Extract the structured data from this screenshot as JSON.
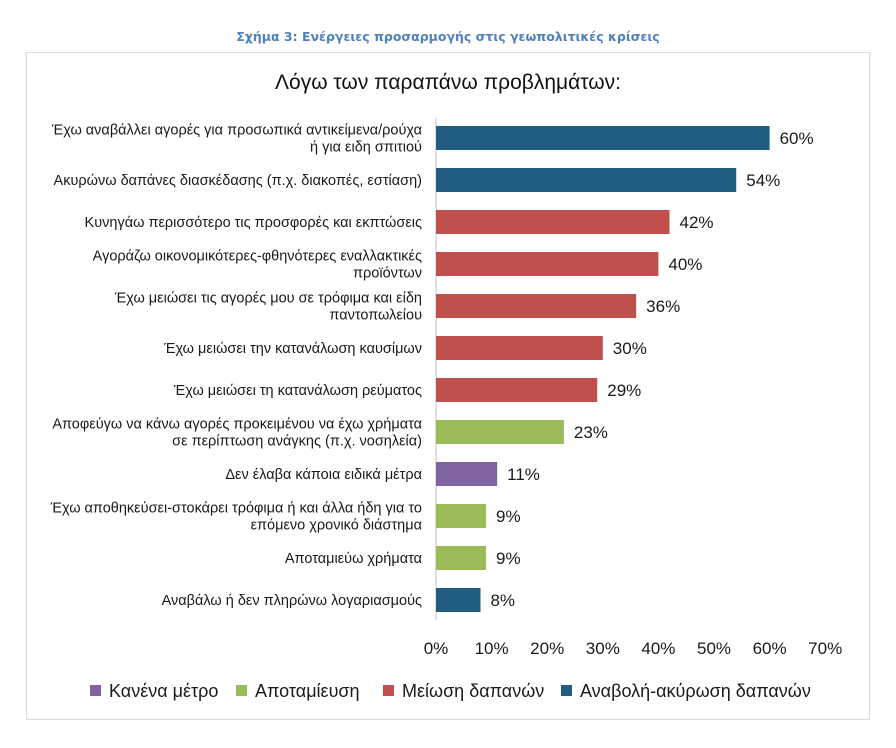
{
  "figure_caption": "Σχήμα 3: Ενέργειες προσαρμογής στις γεωπολιτικές κρίσεις",
  "colors": {
    "Κανένα μέτρο": "#8064a2",
    "Αποταμίευση": "#9bbb59",
    "Μείωση δαπανών": "#c0504d",
    "Αναβολή-ακύρωση δαπανών": "#215d80"
  },
  "chart_data": {
    "type": "bar",
    "orientation": "horizontal",
    "title": "Λόγω των παραπάνω προβλημάτων:",
    "xlim": [
      0,
      70
    ],
    "x_ticks": [
      0,
      10,
      20,
      30,
      40,
      50,
      60,
      70
    ],
    "x_tick_labels": [
      "0%",
      "10%",
      "20%",
      "30%",
      "40%",
      "50%",
      "60%",
      "70%"
    ],
    "legend_position": "bottom",
    "legend": [
      "Κανένα μέτρο",
      "Αποταμίευση",
      "Μείωση δαπανών",
      "Αναβολή-ακύρωση δαπανών"
    ],
    "bars": [
      {
        "label": [
          "Έχω αναβάλλει αγορές για προσωπικά αντικείμενα/ρούχα",
          "ή για ειδη σπιτιού"
        ],
        "value": 60,
        "value_label": "60%",
        "group": "Αναβολή-ακύρωση δαπανών"
      },
      {
        "label": [
          "Ακυρώνω δαπάνες διασκέδασης (π.χ. διακοπές, εστίαση)"
        ],
        "value": 54,
        "value_label": "54%",
        "group": "Αναβολή-ακύρωση δαπανών"
      },
      {
        "label": [
          "Κυνηγάω περισσότερο τις προσφορές και εκπτώσεις"
        ],
        "value": 42,
        "value_label": "42%",
        "group": "Μείωση δαπανών"
      },
      {
        "label": [
          "Αγοράζω οικονομικότερες-φθηνότερες εναλλακτικές",
          "προϊόντων"
        ],
        "value": 40,
        "value_label": "40%",
        "group": "Μείωση δαπανών"
      },
      {
        "label": [
          "Έχω μειώσει τις αγορές μου σε τρόφιμα και είδη",
          "παντοπωλείου"
        ],
        "value": 36,
        "value_label": "36%",
        "group": "Μείωση δαπανών"
      },
      {
        "label": [
          "Έχω μειώσει την κατανάλωση καυσίμων"
        ],
        "value": 30,
        "value_label": "30%",
        "group": "Μείωση δαπανών"
      },
      {
        "label": [
          "Έχω μειώσει τη κατανάλωση ρεύματος"
        ],
        "value": 29,
        "value_label": "29%",
        "group": "Μείωση δαπανών"
      },
      {
        "label": [
          "Αποφεύγω να κάνω αγορές προκειμένου να έχω χρήματα",
          "σε περίπτωση ανάγκης (π.χ. νοσηλεία)"
        ],
        "value": 23,
        "value_label": "23%",
        "group": "Αποταμίευση"
      },
      {
        "label": [
          "Δεν έλαβα κάποια ειδικά μέτρα"
        ],
        "value": 11,
        "value_label": "11%",
        "group": "Κανένα μέτρο"
      },
      {
        "label": [
          "Έχω αποθηκεύσει-στοκάρει τρόφιμα ή και άλλα ήδη για το",
          "επόμενο χρονικό διάστημα"
        ],
        "value": 9,
        "value_label": "9%",
        "group": "Αποταμίευση"
      },
      {
        "label": [
          "Αποταμιεύω χρήματα"
        ],
        "value": 9,
        "value_label": "9%",
        "group": "Αποταμίευση"
      },
      {
        "label": [
          "Αναβάλω ή δεν πληρώνω λογαριασμούς"
        ],
        "value": 8,
        "value_label": "8%",
        "group": "Αναβολή-ακύρωση δαπανών"
      }
    ]
  }
}
